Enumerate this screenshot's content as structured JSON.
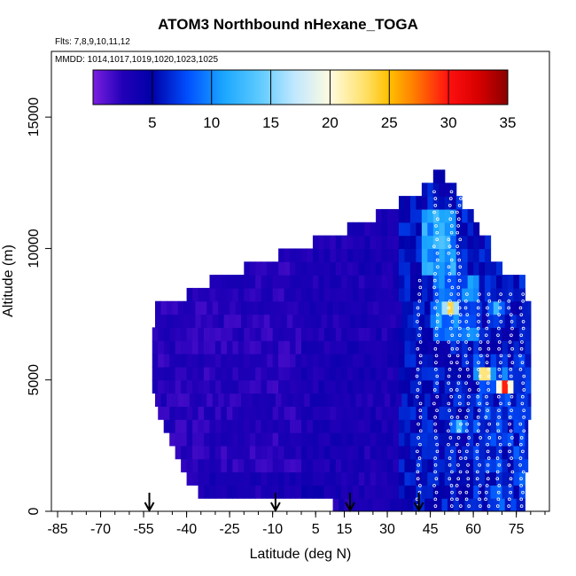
{
  "chart_data": {
    "type": "heatmap",
    "title": "ATOM3 Northbound nHexane_TOGA",
    "flights_label": "Flts: 7,8,9,10,11,12",
    "mmdd_label": "MMDD: 1014,1017,1019,1020,1023,1025",
    "xlabel": "Latitude (deg N)",
    "ylabel": "Altitude (m)",
    "xlim": [
      -85,
      85
    ],
    "ylim": [
      0,
      17500
    ],
    "xticks": [
      {
        "value": -85,
        "label": "-85"
      },
      {
        "value": -70,
        "label": "-70"
      },
      {
        "value": -55,
        "label": "-55"
      },
      {
        "value": -40,
        "label": "-40"
      },
      {
        "value": -25,
        "label": "-25"
      },
      {
        "value": -10,
        "label": "-10"
      },
      {
        "value": 5,
        "label": "5"
      },
      {
        "value": 15,
        "label": "15"
      },
      {
        "value": 30,
        "label": "30"
      },
      {
        "value": 45,
        "label": "45"
      },
      {
        "value": 60,
        "label": "60"
      },
      {
        "value": 75,
        "label": "75"
      }
    ],
    "yticks": [
      {
        "value": 0,
        "label": "0"
      },
      {
        "value": 5000,
        "label": "5000"
      },
      {
        "value": 10000,
        "label": "10000"
      },
      {
        "value": 15000,
        "label": "15000"
      }
    ],
    "colorbar": {
      "min": 0,
      "max": 35,
      "ticks": [
        {
          "value": 5,
          "label": "5"
        },
        {
          "value": 10,
          "label": "10"
        },
        {
          "value": 15,
          "label": "15"
        },
        {
          "value": 20,
          "label": "20"
        },
        {
          "value": 25,
          "label": "25"
        },
        {
          "value": 30,
          "label": "30"
        },
        {
          "value": 35,
          "label": "35"
        }
      ],
      "stops": [
        {
          "v": 0,
          "c": "#7a1fe0"
        },
        {
          "v": 2.5,
          "c": "#2200b8"
        },
        {
          "v": 5,
          "c": "#0000a8"
        },
        {
          "v": 8,
          "c": "#0050ff"
        },
        {
          "v": 11,
          "c": "#1aa6ff"
        },
        {
          "v": 14,
          "c": "#5ccaff"
        },
        {
          "v": 17,
          "c": "#c0e8ff"
        },
        {
          "v": 20,
          "c": "#fffbe0"
        },
        {
          "v": 23,
          "c": "#ffe066"
        },
        {
          "v": 25,
          "c": "#ffc000"
        },
        {
          "v": 27,
          "c": "#ff8000"
        },
        {
          "v": 30,
          "c": "#ff1010"
        },
        {
          "v": 32.5,
          "c": "#d80000"
        },
        {
          "v": 35,
          "c": "#8a0000"
        }
      ]
    },
    "arrows_latitude": [
      -53,
      -9,
      17,
      41
    ],
    "field": {
      "lat_step": 2,
      "alt_step": 500,
      "altitude_band_extents": [
        {
          "alt": 0,
          "lat_min": 11,
          "lat_max": 78
        },
        {
          "alt": 500,
          "lat_min": -36,
          "lat_max": 78
        },
        {
          "alt": 1000,
          "lat_min": -40,
          "lat_max": 78
        },
        {
          "alt": 1500,
          "lat_min": -42,
          "lat_max": 79
        },
        {
          "alt": 2000,
          "lat_min": -44,
          "lat_max": 79
        },
        {
          "alt": 2500,
          "lat_min": -46,
          "lat_max": 79
        },
        {
          "alt": 3000,
          "lat_min": -48,
          "lat_max": 79
        },
        {
          "alt": 3500,
          "lat_min": -50,
          "lat_max": 80
        },
        {
          "alt": 4000,
          "lat_min": -51,
          "lat_max": 80
        },
        {
          "alt": 4500,
          "lat_min": -52,
          "lat_max": 80
        },
        {
          "alt": 5000,
          "lat_min": -52,
          "lat_max": 80
        },
        {
          "alt": 5500,
          "lat_min": -52,
          "lat_max": 80
        },
        {
          "alt": 6000,
          "lat_min": -52,
          "lat_max": 80
        },
        {
          "alt": 6500,
          "lat_min": -52,
          "lat_max": 80
        },
        {
          "alt": 7000,
          "lat_min": -51,
          "lat_max": 80
        },
        {
          "alt": 7500,
          "lat_min": -51,
          "lat_max": 80
        },
        {
          "alt": 8000,
          "lat_min": -40,
          "lat_max": 78
        },
        {
          "alt": 8500,
          "lat_min": -32,
          "lat_max": 78
        },
        {
          "alt": 9000,
          "lat_min": -20,
          "lat_max": 70
        },
        {
          "alt": 9500,
          "lat_min": -8,
          "lat_max": 66
        },
        {
          "alt": 10000,
          "lat_min": 4,
          "lat_max": 66
        },
        {
          "alt": 10500,
          "lat_min": 16,
          "lat_max": 62
        },
        {
          "alt": 11000,
          "lat_min": 26,
          "lat_max": 60
        },
        {
          "alt": 11500,
          "lat_min": 34,
          "lat_max": 56
        },
        {
          "alt": 12000,
          "lat_min": 42,
          "lat_max": 54
        },
        {
          "alt": 12500,
          "lat_min": 46,
          "lat_max": 50
        }
      ],
      "hotspots": [
        {
          "lat": 52,
          "alt": 7700,
          "value": 24
        },
        {
          "lat": 64,
          "alt": 5200,
          "value": 25
        },
        {
          "lat": 71,
          "alt": 4800,
          "value": 30
        },
        {
          "lat": 50,
          "alt": 9500,
          "value": 12
        },
        {
          "lat": 55,
          "alt": 3300,
          "value": 13
        },
        {
          "lat": 68,
          "alt": 7600,
          "value": 14
        }
      ]
    },
    "profiles_latitude": [
      41,
      47,
      52,
      55,
      58,
      62,
      65,
      69,
      73,
      77
    ]
  }
}
